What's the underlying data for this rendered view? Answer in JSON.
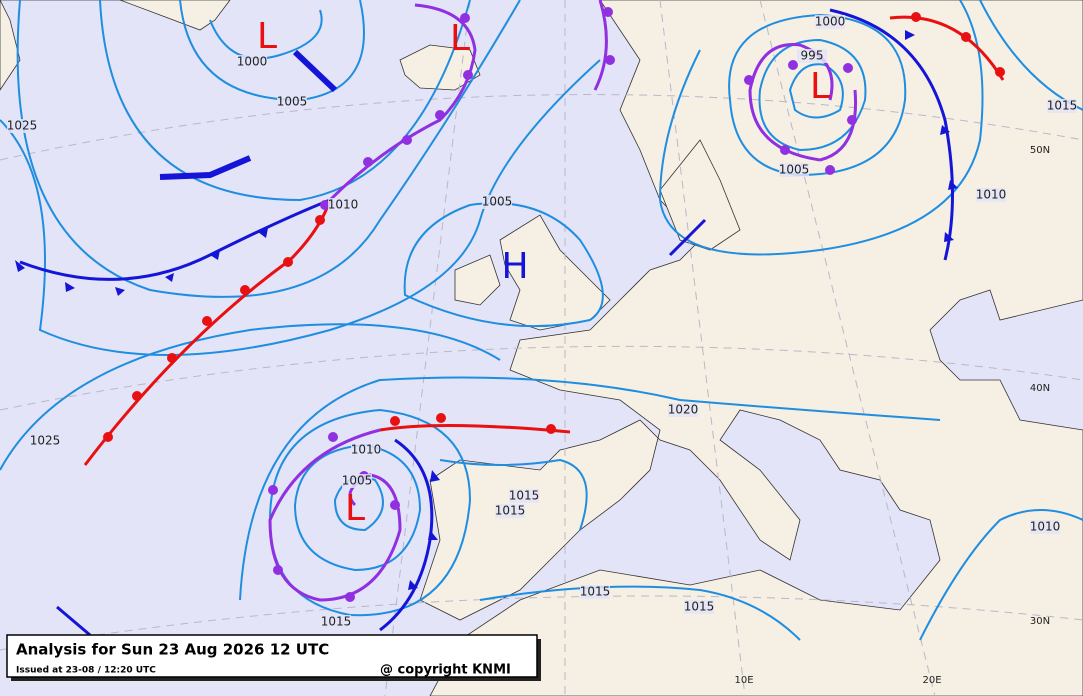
{
  "title": "Analysis for Sun 23 Aug 2026 12 UTC",
  "issued": "Issued at 23-08 / 12:20 UTC",
  "copyright": "@ copyright KNMI",
  "pressure_centers": [
    {
      "label": "L"
    },
    {
      "label": "L"
    },
    {
      "label": "H"
    },
    {
      "label": "L"
    },
    {
      "label": "L"
    }
  ],
  "isobar_labels": [
    "1000",
    "1005",
    "1025",
    "1010",
    "1005",
    "1025",
    "1010",
    "1005",
    "1015",
    "1015",
    "1015",
    "1015",
    "1015",
    "1020",
    "1000",
    "995",
    "1005",
    "1010",
    "1015",
    "1010"
  ],
  "grid_labels": [
    "50N",
    "40N",
    "30N",
    "10E",
    "20E"
  ]
}
